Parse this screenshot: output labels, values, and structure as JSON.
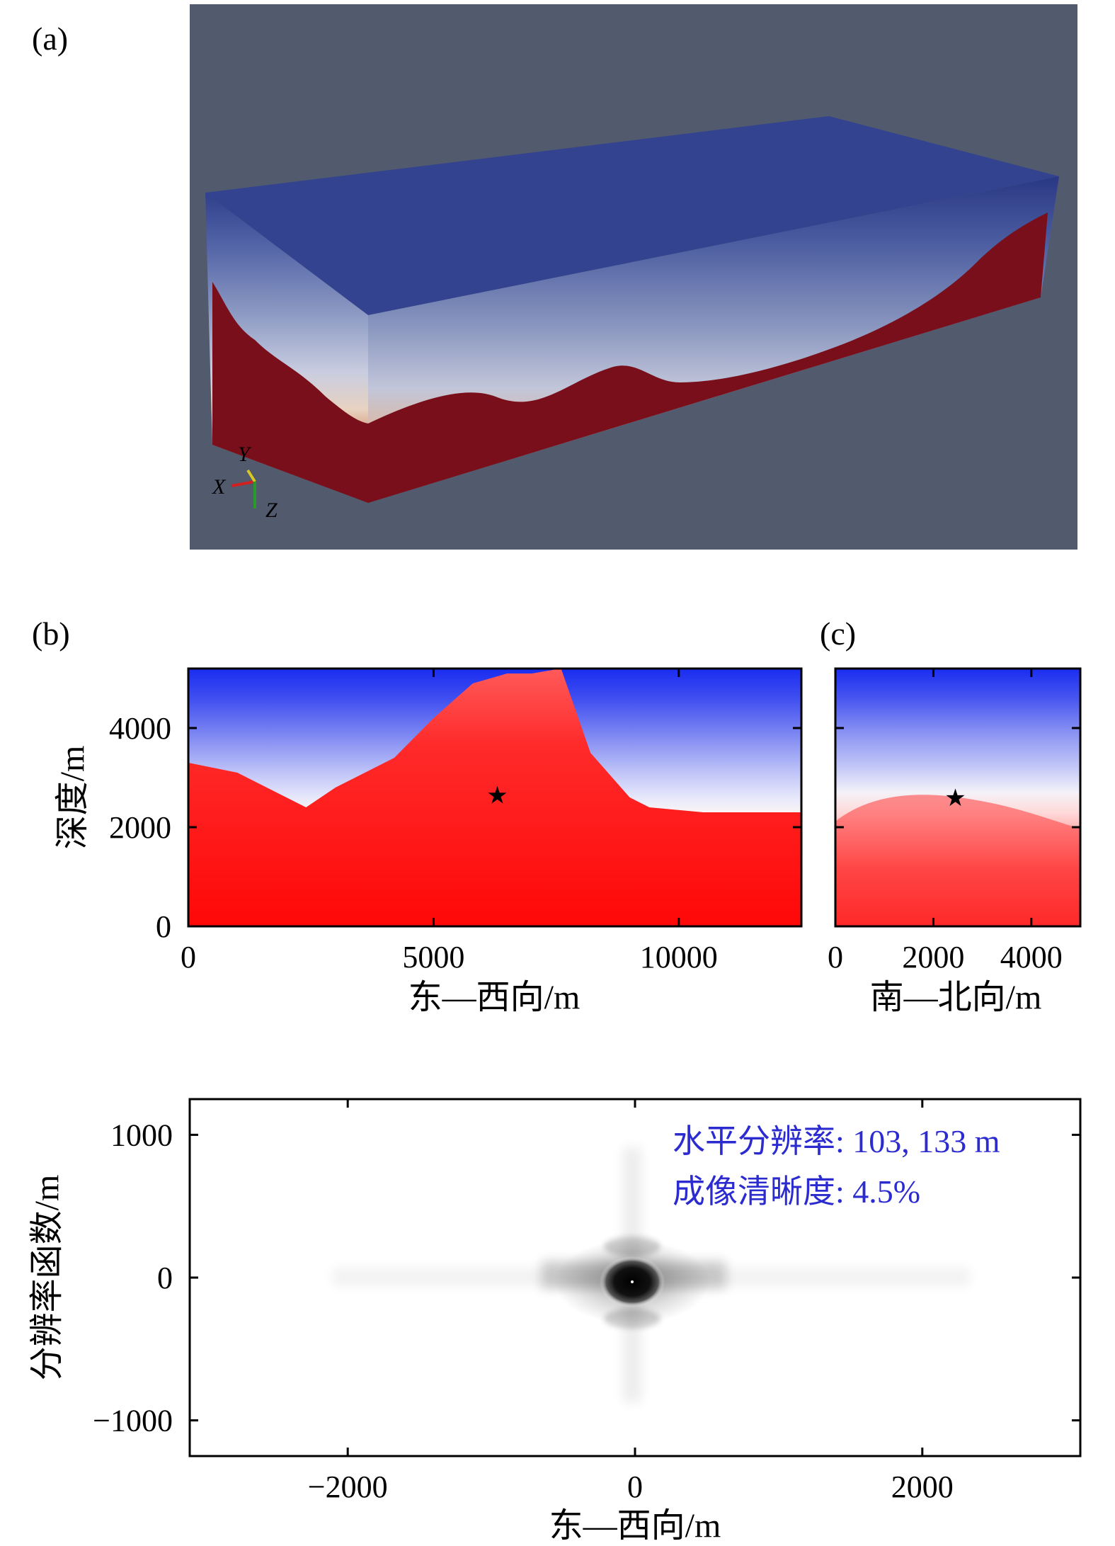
{
  "panels": {
    "a": "(a)",
    "b": "(b)",
    "c": "(c)"
  },
  "model3d": {
    "axis_labels": {
      "x": "X",
      "y": "Y",
      "z": "Z"
    },
    "colors": {
      "background": "#525a6e",
      "top": "#33438f",
      "basement": "#7a0f1c"
    }
  },
  "chart_data": [
    {
      "panel": "b",
      "type": "heatmap",
      "xlabel": "东—西向/m",
      "ylabel": "深度/m",
      "xlim": [
        0,
        12500
      ],
      "ylim": [
        5200,
        0
      ],
      "xticks": [
        0,
        5000,
        10000
      ],
      "yticks": [
        0,
        2000,
        4000
      ],
      "colormap": {
        "low": "#1a2cf0",
        "mid": "#ffffff",
        "high": "#ff1010"
      },
      "sediment_basement_interface": {
        "x": [
          0,
          1000,
          2400,
          3000,
          4200,
          5000,
          5800,
          6500,
          7000,
          7600,
          8200,
          9000,
          9400,
          10500,
          12500
        ],
        "depth": [
          3300,
          3100,
          2400,
          2800,
          3400,
          4200,
          4900,
          5100,
          5100,
          5200,
          3500,
          2600,
          2400,
          2300,
          2300
        ]
      },
      "star": {
        "x": 6300,
        "depth": 2650
      }
    },
    {
      "panel": "c",
      "type": "heatmap",
      "xlabel": "南—北向/m",
      "xlim": [
        0,
        5000
      ],
      "ylim": [
        5200,
        0
      ],
      "xticks": [
        0,
        2000,
        4000
      ],
      "yticks": [
        0,
        2000,
        4000
      ],
      "colormap": {
        "low": "#1a2cf0",
        "mid": "#ffffff",
        "high": "#ff1010"
      },
      "star": {
        "x": 2450,
        "depth": 2600
      }
    },
    {
      "panel": "resolution",
      "type": "heatmap",
      "xlabel": "东—西向/m",
      "ylabel": "分辨率函数/m",
      "xlim": [
        -3100,
        3100
      ],
      "ylim": [
        -1250,
        1250
      ],
      "xticks": [
        -2000,
        0,
        2000
      ],
      "yticks": [
        -1000,
        0,
        1000
      ],
      "annotations": [
        "水平分辨率: 103, 133 m",
        "成像清晰度: 4.5%"
      ],
      "peak": {
        "x": 0,
        "y": 0
      }
    }
  ]
}
